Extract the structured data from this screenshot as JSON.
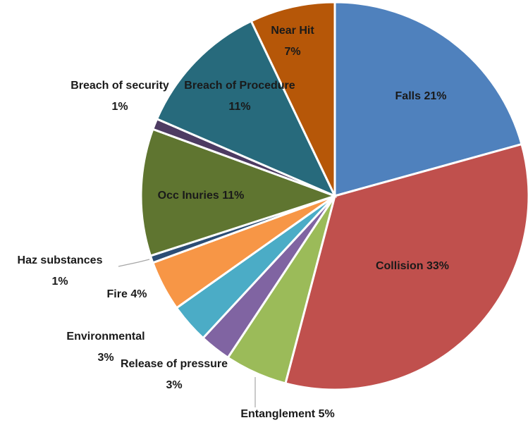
{
  "chart_data": {
    "type": "pie",
    "categories": [
      "Falls",
      "Collision",
      "Entanglement",
      "Release of pressure",
      "Environmental",
      "Fire",
      "Haz substances",
      "Occ Inuries",
      "Breach of security",
      "Breach of Procedure",
      "Near Hit"
    ],
    "values": [
      20.7,
      33.4,
      5.2,
      2.6,
      3.3,
      4.2,
      0.6,
      10.6,
      0.9,
      11.4,
      7.1
    ],
    "value_labels": [
      "21%",
      "33%",
      "5%",
      "3%",
      "3%",
      "4%",
      "1%",
      "11%",
      "1%",
      "11%",
      "7%"
    ],
    "colors": [
      "#4f81bd",
      "#c0504d",
      "#9bbb59",
      "#8064a2",
      "#4bacc6",
      "#f79646",
      "#2c4d75",
      "#5f7530",
      "#4d3b62",
      "#276a7c",
      "#b65708"
    ]
  }
}
